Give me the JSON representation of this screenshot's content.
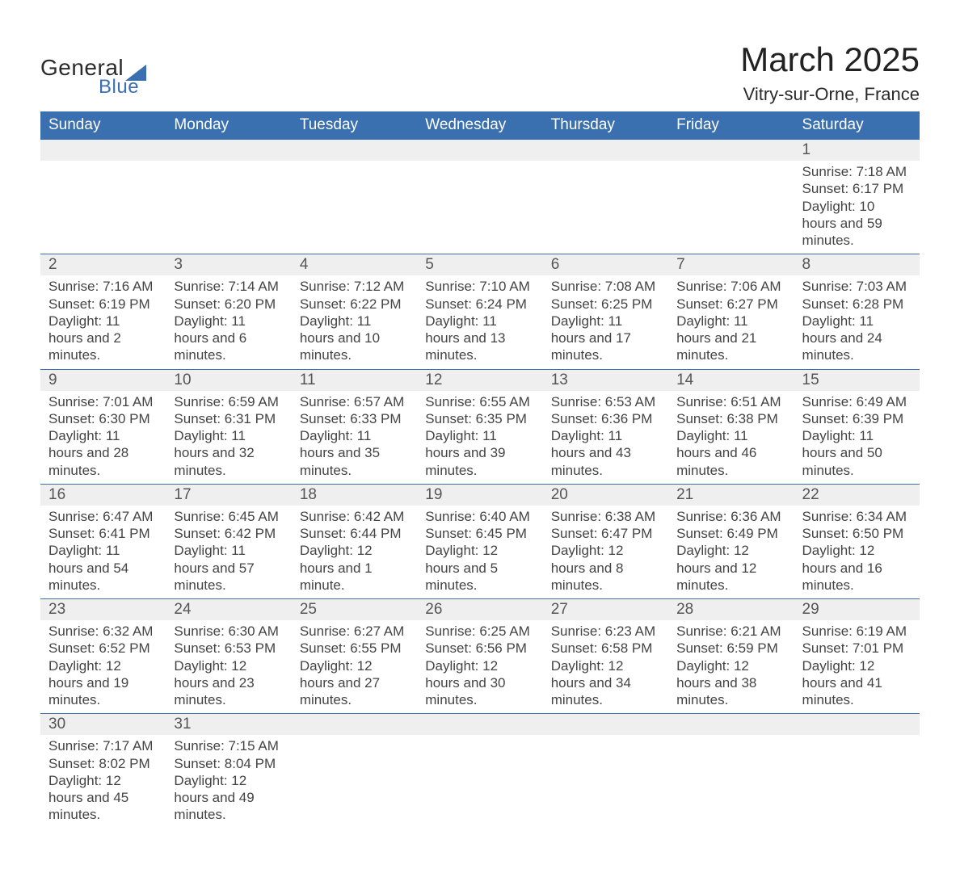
{
  "brand": {
    "line1": "General",
    "line2": "Blue"
  },
  "title": "March 2025",
  "subtitle": "Vitry-sur-Orne, France",
  "colors": {
    "header_bg": "#3a6fb0",
    "header_text": "#ffffff",
    "daynum_bg": "#efefef",
    "border": "#3a6fb0",
    "body_text": "#444444",
    "page_bg": "#ffffff"
  },
  "weekdays": [
    "Sunday",
    "Monday",
    "Tuesday",
    "Wednesday",
    "Thursday",
    "Friday",
    "Saturday"
  ],
  "labels": {
    "sunrise": "Sunrise:",
    "sunset": "Sunset:",
    "daylight": "Daylight:"
  },
  "weeks": [
    [
      null,
      null,
      null,
      null,
      null,
      null,
      {
        "n": "1",
        "sunrise": "7:18 AM",
        "sunset": "6:17 PM",
        "daylight": "10 hours and 59 minutes."
      }
    ],
    [
      {
        "n": "2",
        "sunrise": "7:16 AM",
        "sunset": "6:19 PM",
        "daylight": "11 hours and 2 minutes."
      },
      {
        "n": "3",
        "sunrise": "7:14 AM",
        "sunset": "6:20 PM",
        "daylight": "11 hours and 6 minutes."
      },
      {
        "n": "4",
        "sunrise": "7:12 AM",
        "sunset": "6:22 PM",
        "daylight": "11 hours and 10 minutes."
      },
      {
        "n": "5",
        "sunrise": "7:10 AM",
        "sunset": "6:24 PM",
        "daylight": "11 hours and 13 minutes."
      },
      {
        "n": "6",
        "sunrise": "7:08 AM",
        "sunset": "6:25 PM",
        "daylight": "11 hours and 17 minutes."
      },
      {
        "n": "7",
        "sunrise": "7:06 AM",
        "sunset": "6:27 PM",
        "daylight": "11 hours and 21 minutes."
      },
      {
        "n": "8",
        "sunrise": "7:03 AM",
        "sunset": "6:28 PM",
        "daylight": "11 hours and 24 minutes."
      }
    ],
    [
      {
        "n": "9",
        "sunrise": "7:01 AM",
        "sunset": "6:30 PM",
        "daylight": "11 hours and 28 minutes."
      },
      {
        "n": "10",
        "sunrise": "6:59 AM",
        "sunset": "6:31 PM",
        "daylight": "11 hours and 32 minutes."
      },
      {
        "n": "11",
        "sunrise": "6:57 AM",
        "sunset": "6:33 PM",
        "daylight": "11 hours and 35 minutes."
      },
      {
        "n": "12",
        "sunrise": "6:55 AM",
        "sunset": "6:35 PM",
        "daylight": "11 hours and 39 minutes."
      },
      {
        "n": "13",
        "sunrise": "6:53 AM",
        "sunset": "6:36 PM",
        "daylight": "11 hours and 43 minutes."
      },
      {
        "n": "14",
        "sunrise": "6:51 AM",
        "sunset": "6:38 PM",
        "daylight": "11 hours and 46 minutes."
      },
      {
        "n": "15",
        "sunrise": "6:49 AM",
        "sunset": "6:39 PM",
        "daylight": "11 hours and 50 minutes."
      }
    ],
    [
      {
        "n": "16",
        "sunrise": "6:47 AM",
        "sunset": "6:41 PM",
        "daylight": "11 hours and 54 minutes."
      },
      {
        "n": "17",
        "sunrise": "6:45 AM",
        "sunset": "6:42 PM",
        "daylight": "11 hours and 57 minutes."
      },
      {
        "n": "18",
        "sunrise": "6:42 AM",
        "sunset": "6:44 PM",
        "daylight": "12 hours and 1 minute."
      },
      {
        "n": "19",
        "sunrise": "6:40 AM",
        "sunset": "6:45 PM",
        "daylight": "12 hours and 5 minutes."
      },
      {
        "n": "20",
        "sunrise": "6:38 AM",
        "sunset": "6:47 PM",
        "daylight": "12 hours and 8 minutes."
      },
      {
        "n": "21",
        "sunrise": "6:36 AM",
        "sunset": "6:49 PM",
        "daylight": "12 hours and 12 minutes."
      },
      {
        "n": "22",
        "sunrise": "6:34 AM",
        "sunset": "6:50 PM",
        "daylight": "12 hours and 16 minutes."
      }
    ],
    [
      {
        "n": "23",
        "sunrise": "6:32 AM",
        "sunset": "6:52 PM",
        "daylight": "12 hours and 19 minutes."
      },
      {
        "n": "24",
        "sunrise": "6:30 AM",
        "sunset": "6:53 PM",
        "daylight": "12 hours and 23 minutes."
      },
      {
        "n": "25",
        "sunrise": "6:27 AM",
        "sunset": "6:55 PM",
        "daylight": "12 hours and 27 minutes."
      },
      {
        "n": "26",
        "sunrise": "6:25 AM",
        "sunset": "6:56 PM",
        "daylight": "12 hours and 30 minutes."
      },
      {
        "n": "27",
        "sunrise": "6:23 AM",
        "sunset": "6:58 PM",
        "daylight": "12 hours and 34 minutes."
      },
      {
        "n": "28",
        "sunrise": "6:21 AM",
        "sunset": "6:59 PM",
        "daylight": "12 hours and 38 minutes."
      },
      {
        "n": "29",
        "sunrise": "6:19 AM",
        "sunset": "7:01 PM",
        "daylight": "12 hours and 41 minutes."
      }
    ],
    [
      {
        "n": "30",
        "sunrise": "7:17 AM",
        "sunset": "8:02 PM",
        "daylight": "12 hours and 45 minutes."
      },
      {
        "n": "31",
        "sunrise": "7:15 AM",
        "sunset": "8:04 PM",
        "daylight": "12 hours and 49 minutes."
      },
      null,
      null,
      null,
      null,
      null
    ]
  ]
}
